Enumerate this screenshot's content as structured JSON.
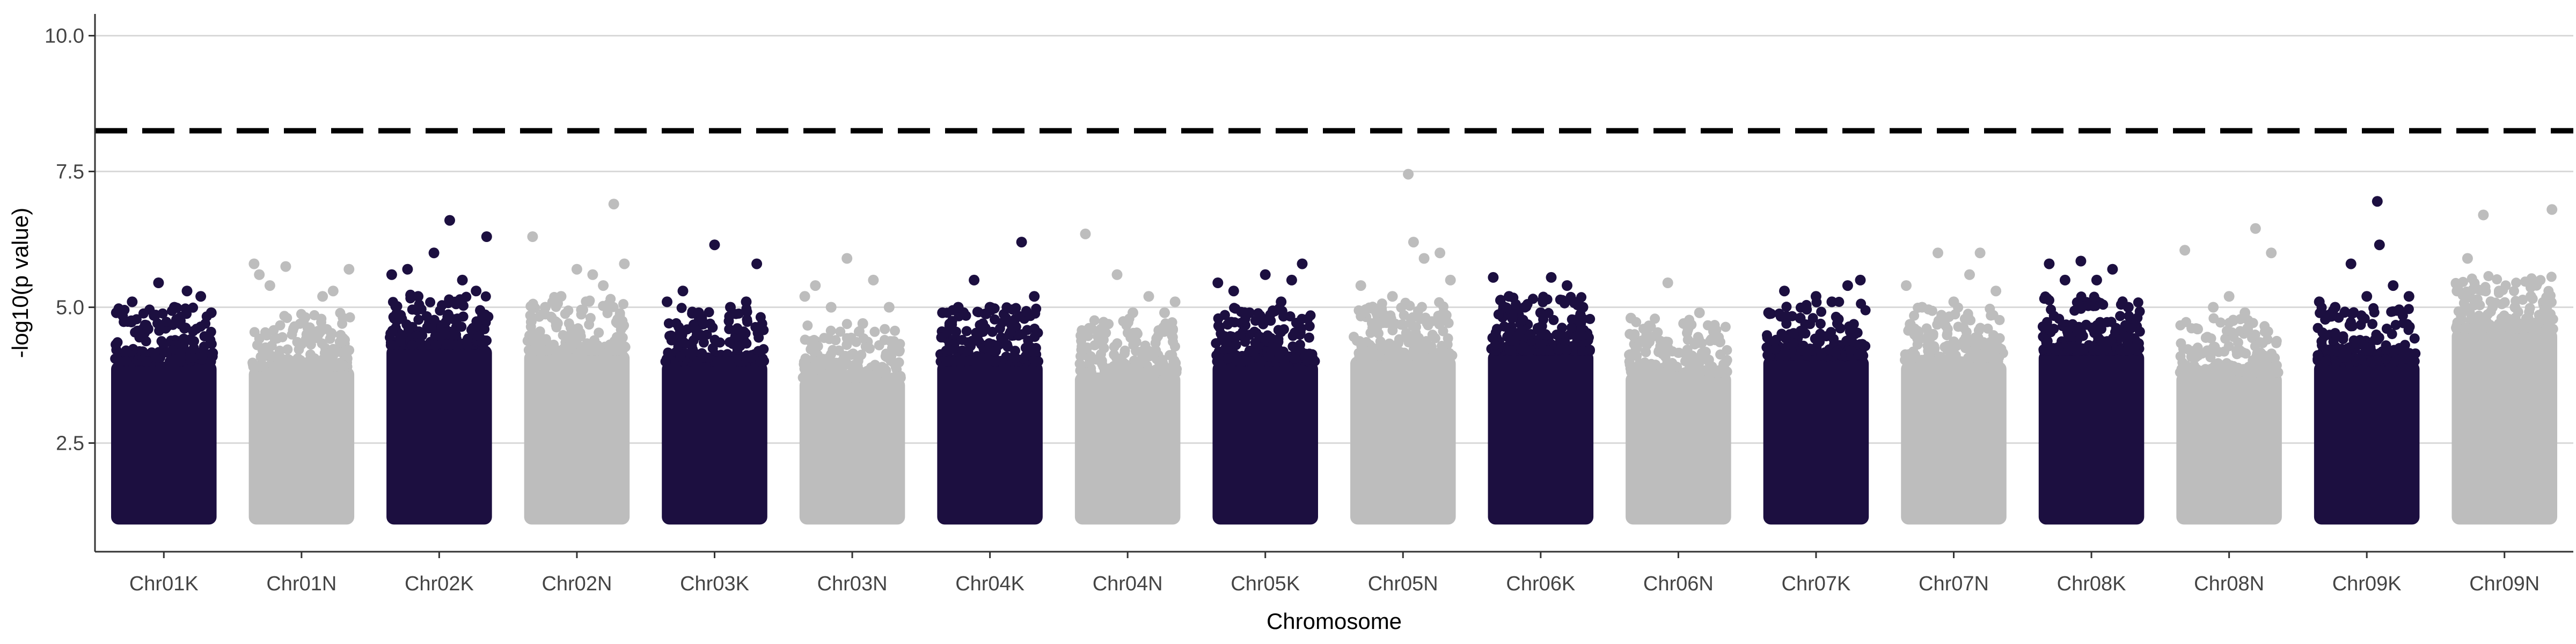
{
  "chart_data": {
    "type": "scatter",
    "subtype": "manhattan",
    "title": "",
    "xlabel": "Chromosome",
    "ylabel": "-log10(p value)",
    "ylim": [
      0.5,
      10.4
    ],
    "yticks": [
      2.5,
      5.0,
      7.5,
      10.0
    ],
    "ytick_labels": [
      "2.5",
      "5.0",
      "7.5",
      "10.0"
    ],
    "threshold": 8.25,
    "grid": "horizontal major",
    "legend": "none",
    "colors": {
      "odd": "#1c0f40",
      "even": "#bdbdbd",
      "threshold_line": "#000000",
      "grid": "#d9d9d9",
      "axis": "#333333"
    },
    "categories": [
      "Chr01K",
      "Chr01N",
      "Chr02K",
      "Chr02N",
      "Chr03K",
      "Chr03N",
      "Chr04K",
      "Chr04N",
      "Chr05K",
      "Chr05N",
      "Chr06K",
      "Chr06N",
      "Chr07K",
      "Chr07N",
      "Chr08K",
      "Chr08N",
      "Chr09K",
      "Chr09N"
    ],
    "series": [
      {
        "category": "Chr01K",
        "min": 1.0,
        "dense_top": 4.0,
        "peaks": [
          [
            0.05,
            4.9
          ],
          [
            0.2,
            5.1
          ],
          [
            0.35,
            4.6
          ],
          [
            0.45,
            5.45
          ],
          [
            0.6,
            5.0
          ],
          [
            0.72,
            5.3
          ],
          [
            0.85,
            5.2
          ],
          [
            0.95,
            4.9
          ]
        ]
      },
      {
        "category": "Chr01N",
        "min": 1.0,
        "dense_top": 3.9,
        "peaks": [
          [
            0.05,
            5.8
          ],
          [
            0.1,
            5.6
          ],
          [
            0.2,
            5.4
          ],
          [
            0.35,
            5.75
          ],
          [
            0.55,
            4.5
          ],
          [
            0.7,
            5.2
          ],
          [
            0.8,
            5.3
          ],
          [
            0.95,
            5.7
          ]
        ]
      },
      {
        "category": "Chr02K",
        "min": 1.0,
        "dense_top": 4.3,
        "peaks": [
          [
            0.05,
            5.6
          ],
          [
            0.2,
            5.7
          ],
          [
            0.3,
            5.2
          ],
          [
            0.45,
            6.0
          ],
          [
            0.6,
            6.6
          ],
          [
            0.72,
            5.5
          ],
          [
            0.85,
            5.3
          ],
          [
            0.95,
            6.3
          ]
        ]
      },
      {
        "category": "Chr02N",
        "min": 1.0,
        "dense_top": 4.2,
        "peaks": [
          [
            0.08,
            6.3
          ],
          [
            0.2,
            5.0
          ],
          [
            0.35,
            5.2
          ],
          [
            0.5,
            5.7
          ],
          [
            0.65,
            5.6
          ],
          [
            0.75,
            5.4
          ],
          [
            0.85,
            6.9
          ],
          [
            0.95,
            5.8
          ]
        ]
      },
      {
        "category": "Chr03K",
        "min": 1.0,
        "dense_top": 4.0,
        "peaks": [
          [
            0.05,
            5.1
          ],
          [
            0.2,
            5.3
          ],
          [
            0.35,
            4.9
          ],
          [
            0.5,
            6.15
          ],
          [
            0.65,
            5.0
          ],
          [
            0.8,
            5.1
          ],
          [
            0.9,
            5.8
          ]
        ]
      },
      {
        "category": "Chr03N",
        "min": 1.0,
        "dense_top": 3.7,
        "peaks": [
          [
            0.05,
            5.2
          ],
          [
            0.15,
            5.4
          ],
          [
            0.3,
            5.0
          ],
          [
            0.45,
            5.9
          ],
          [
            0.6,
            4.7
          ],
          [
            0.7,
            5.5
          ],
          [
            0.85,
            5.0
          ]
        ]
      },
      {
        "category": "Chr04K",
        "min": 1.0,
        "dense_top": 4.0,
        "peaks": [
          [
            0.05,
            4.9
          ],
          [
            0.2,
            5.0
          ],
          [
            0.35,
            5.5
          ],
          [
            0.5,
            5.0
          ],
          [
            0.65,
            4.8
          ],
          [
            0.8,
            6.2
          ],
          [
            0.92,
            5.2
          ]
        ]
      },
      {
        "category": "Chr04N",
        "min": 1.0,
        "dense_top": 3.8,
        "peaks": [
          [
            0.1,
            6.35
          ],
          [
            0.25,
            4.6
          ],
          [
            0.4,
            5.6
          ],
          [
            0.55,
            4.9
          ],
          [
            0.7,
            5.2
          ],
          [
            0.85,
            4.9
          ],
          [
            0.95,
            5.1
          ]
        ]
      },
      {
        "category": "Chr05K",
        "min": 1.0,
        "dense_top": 4.0,
        "peaks": [
          [
            0.05,
            5.45
          ],
          [
            0.2,
            5.3
          ],
          [
            0.35,
            4.9
          ],
          [
            0.5,
            5.6
          ],
          [
            0.65,
            5.1
          ],
          [
            0.75,
            5.5
          ],
          [
            0.85,
            5.8
          ]
        ]
      },
      {
        "category": "Chr05N",
        "min": 1.0,
        "dense_top": 4.1,
        "peaks": [
          [
            0.1,
            5.4
          ],
          [
            0.25,
            4.9
          ],
          [
            0.4,
            5.2
          ],
          [
            0.55,
            7.45
          ],
          [
            0.6,
            6.2
          ],
          [
            0.7,
            5.9
          ],
          [
            0.85,
            6.0
          ],
          [
            0.95,
            5.5
          ]
        ]
      },
      {
        "category": "Chr06K",
        "min": 1.0,
        "dense_top": 4.2,
        "peaks": [
          [
            0.05,
            5.55
          ],
          [
            0.2,
            5.2
          ],
          [
            0.35,
            5.0
          ],
          [
            0.5,
            4.9
          ],
          [
            0.6,
            5.55
          ],
          [
            0.75,
            5.4
          ],
          [
            0.9,
            5.0
          ]
        ]
      },
      {
        "category": "Chr06N",
        "min": 1.0,
        "dense_top": 3.8,
        "peaks": [
          [
            0.05,
            4.8
          ],
          [
            0.2,
            4.5
          ],
          [
            0.4,
            5.45
          ],
          [
            0.55,
            4.7
          ],
          [
            0.7,
            4.9
          ],
          [
            0.85,
            4.4
          ]
        ]
      },
      {
        "category": "Chr07K",
        "min": 1.0,
        "dense_top": 4.1,
        "peaks": [
          [
            0.05,
            4.9
          ],
          [
            0.2,
            5.3
          ],
          [
            0.35,
            4.8
          ],
          [
            0.5,
            5.2
          ],
          [
            0.65,
            5.1
          ],
          [
            0.8,
            5.4
          ],
          [
            0.92,
            5.5
          ]
        ]
      },
      {
        "category": "Chr07N",
        "min": 1.0,
        "dense_top": 4.0,
        "peaks": [
          [
            0.05,
            5.4
          ],
          [
            0.2,
            5.0
          ],
          [
            0.35,
            6.0
          ],
          [
            0.5,
            5.1
          ],
          [
            0.65,
            5.6
          ],
          [
            0.75,
            6.0
          ],
          [
            0.9,
            5.3
          ]
        ]
      },
      {
        "category": "Chr08K",
        "min": 1.0,
        "dense_top": 4.2,
        "peaks": [
          [
            0.1,
            5.8
          ],
          [
            0.25,
            5.5
          ],
          [
            0.4,
            5.85
          ],
          [
            0.55,
            5.5
          ],
          [
            0.7,
            5.7
          ],
          [
            0.85,
            5.0
          ]
        ]
      },
      {
        "category": "Chr08N",
        "min": 1.0,
        "dense_top": 3.8,
        "peaks": [
          [
            0.08,
            6.05
          ],
          [
            0.2,
            4.6
          ],
          [
            0.35,
            5.0
          ],
          [
            0.5,
            5.2
          ],
          [
            0.65,
            4.9
          ],
          [
            0.75,
            6.45
          ],
          [
            0.9,
            6.0
          ]
        ]
      },
      {
        "category": "Chr09K",
        "min": 1.0,
        "dense_top": 4.0,
        "peaks": [
          [
            0.05,
            5.1
          ],
          [
            0.2,
            5.0
          ],
          [
            0.35,
            5.8
          ],
          [
            0.5,
            5.2
          ],
          [
            0.6,
            6.95
          ],
          [
            0.62,
            6.15
          ],
          [
            0.75,
            5.4
          ],
          [
            0.9,
            5.2
          ]
        ]
      },
      {
        "category": "Chr09N",
        "min": 1.0,
        "dense_top": 4.6,
        "peaks": [
          [
            0.05,
            5.3
          ],
          [
            0.15,
            5.9
          ],
          [
            0.3,
            6.7
          ],
          [
            0.45,
            5.3
          ],
          [
            0.6,
            5.0
          ],
          [
            0.75,
            5.2
          ],
          [
            0.9,
            5.0
          ],
          [
            0.95,
            6.8
          ]
        ]
      }
    ]
  }
}
